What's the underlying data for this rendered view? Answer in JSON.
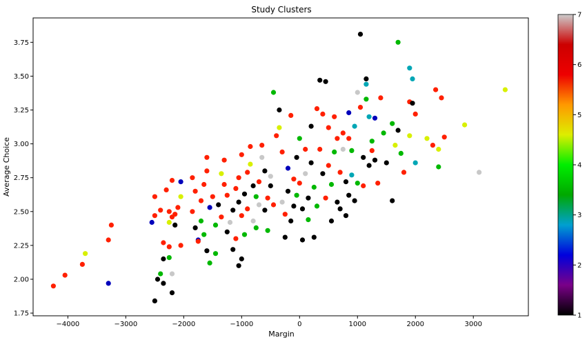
{
  "chart_data": {
    "type": "scatter",
    "title": "Study Clusters",
    "xlabel": "Margin",
    "ylabel": "Average Choice",
    "xlim": [
      -4600,
      3950
    ],
    "ylim": [
      1.73,
      3.93
    ],
    "xticks": [
      -4000,
      -3000,
      -2000,
      -1000,
      0,
      1000,
      2000,
      3000
    ],
    "yticks": [
      1.75,
      2.0,
      2.25,
      2.5,
      2.75,
      3.0,
      3.25,
      3.5,
      3.75
    ],
    "xtick_labels": [
      "−4000",
      "−3000",
      "−2000",
      "−1000",
      "0",
      "1000",
      "2000",
      "3000"
    ],
    "ytick_labels": [
      "1.75",
      "2.00",
      "2.25",
      "2.50",
      "2.75",
      "3.00",
      "3.25",
      "3.50",
      "3.75"
    ],
    "grid": false,
    "colormap": "nipy_spectral",
    "colorbar": {
      "min": 1,
      "max": 7,
      "ticks": [
        1,
        2,
        3,
        4,
        5,
        6,
        7
      ],
      "tick_labels": [
        "1",
        "2",
        "3",
        "4",
        "5",
        "6",
        "7"
      ],
      "stops": [
        "#000000",
        "#7a0088",
        "#0000dd",
        "#00a0d0",
        "#00a800",
        "#00ee00",
        "#ddee00",
        "#ff9900",
        "#ee0000",
        "#cc0000",
        "#cccccc"
      ]
    },
    "category_colors": {
      "1": "#000000",
      "2": "#0000bb",
      "3": "#00a6b5",
      "4": "#00b800",
      "5": "#d8f000",
      "6": "#ff2000",
      "7": "#c8c8c8"
    },
    "points": [
      [
        -4250,
        1.95,
        6
      ],
      [
        -4050,
        2.03,
        6
      ],
      [
        -3750,
        2.11,
        6
      ],
      [
        -3700,
        2.19,
        5
      ],
      [
        -3300,
        2.29,
        6
      ],
      [
        -3250,
        2.4,
        6
      ],
      [
        -3300,
        1.97,
        2
      ],
      [
        -2550,
        2.42,
        2
      ],
      [
        -2500,
        2.47,
        6
      ],
      [
        -2500,
        2.61,
        6
      ],
      [
        -2400,
        2.51,
        6
      ],
      [
        -2350,
        2.27,
        6
      ],
      [
        -2350,
        2.15,
        1
      ],
      [
        -2400,
        2.04,
        4
      ],
      [
        -2500,
        1.84,
        1
      ],
      [
        -2450,
        2.0,
        1
      ],
      [
        -2350,
        1.97,
        1
      ],
      [
        -2200,
        1.9,
        1
      ],
      [
        -2200,
        2.04,
        7
      ],
      [
        -2250,
        2.16,
        4
      ],
      [
        -2250,
        2.24,
        6
      ],
      [
        -2300,
        2.66,
        6
      ],
      [
        -2200,
        2.73,
        6
      ],
      [
        -2050,
        2.72,
        2
      ],
      [
        -2100,
        2.53,
        6
      ],
      [
        -2150,
        2.48,
        6
      ],
      [
        -2200,
        2.46,
        6
      ],
      [
        -2250,
        2.5,
        6
      ],
      [
        -2150,
        2.4,
        1
      ],
      [
        -2050,
        2.61,
        5
      ],
      [
        -2250,
        2.42,
        5
      ],
      [
        -2050,
        2.25,
        6
      ],
      [
        -1850,
        2.5,
        6
      ],
      [
        -1800,
        2.65,
        6
      ],
      [
        -1800,
        2.38,
        1
      ],
      [
        -1750,
        2.29,
        2
      ],
      [
        -1750,
        2.28,
        6
      ],
      [
        -1700,
        2.43,
        4
      ],
      [
        -1650,
        2.33,
        4
      ],
      [
        -1700,
        2.58,
        6
      ],
      [
        -1650,
        2.7,
        6
      ],
      [
        -1600,
        2.8,
        6
      ],
      [
        -1600,
        2.9,
        6
      ],
      [
        -1500,
        2.61,
        6
      ],
      [
        -1550,
        2.53,
        2
      ],
      [
        -1600,
        2.21,
        1
      ],
      [
        -1550,
        2.12,
        4
      ],
      [
        -1450,
        2.19,
        4
      ],
      [
        -1450,
        2.4,
        4
      ],
      [
        -1400,
        2.55,
        1
      ],
      [
        -1350,
        2.46,
        6
      ],
      [
        -1300,
        2.7,
        6
      ],
      [
        -1350,
        2.78,
        5
      ],
      [
        -1300,
        2.88,
        6
      ],
      [
        -1250,
        2.62,
        6
      ],
      [
        -1200,
        2.42,
        7
      ],
      [
        -1150,
        2.51,
        1
      ],
      [
        -1150,
        2.22,
        1
      ],
      [
        -1100,
        2.3,
        6
      ],
      [
        -1100,
        2.67,
        6
      ],
      [
        -1050,
        2.57,
        1
      ],
      [
        -1050,
        2.75,
        6
      ],
      [
        -1000,
        2.92,
        6
      ],
      [
        -1000,
        2.47,
        6
      ],
      [
        -950,
        2.63,
        1
      ],
      [
        -950,
        2.33,
        4
      ],
      [
        -1000,
        2.15,
        1
      ],
      [
        -1050,
        2.1,
        1
      ],
      [
        -900,
        2.52,
        6
      ],
      [
        -900,
        2.79,
        6
      ],
      [
        -850,
        2.85,
        5
      ],
      [
        -850,
        2.98,
        6
      ],
      [
        -800,
        2.69,
        1
      ],
      [
        -800,
        2.43,
        7
      ],
      [
        -750,
        2.61,
        4
      ],
      [
        -750,
        2.38,
        4
      ],
      [
        -700,
        2.55,
        7
      ],
      [
        -700,
        2.72,
        6
      ],
      [
        -650,
        2.9,
        7
      ],
      [
        -650,
        2.99,
        6
      ],
      [
        -600,
        2.8,
        1
      ],
      [
        -600,
        2.51,
        1
      ],
      [
        -550,
        2.6,
        6
      ],
      [
        -550,
        2.36,
        4
      ],
      [
        -500,
        2.76,
        7
      ],
      [
        -500,
        2.69,
        1
      ],
      [
        -450,
        3.38,
        4
      ],
      [
        -400,
        3.06,
        6
      ],
      [
        -350,
        3.25,
        1
      ],
      [
        -350,
        3.12,
        5
      ],
      [
        -300,
        2.94,
        6
      ],
      [
        -300,
        2.57,
        7
      ],
      [
        -250,
        2.48,
        6
      ],
      [
        -250,
        2.31,
        1
      ],
      [
        -200,
        2.82,
        2
      ],
      [
        -200,
        2.65,
        1
      ],
      [
        -150,
        3.21,
        6
      ],
      [
        -150,
        2.43,
        1
      ],
      [
        -100,
        2.74,
        6
      ],
      [
        -100,
        2.54,
        1
      ],
      [
        -50,
        2.9,
        1
      ],
      [
        -50,
        2.62,
        4
      ],
      [
        0,
        3.04,
        4
      ],
      [
        0,
        2.71,
        6
      ],
      [
        50,
        2.52,
        1
      ],
      [
        50,
        2.29,
        1
      ],
      [
        100,
        2.96,
        6
      ],
      [
        100,
        2.78,
        7
      ],
      [
        150,
        2.6,
        1
      ],
      [
        150,
        2.44,
        4
      ],
      [
        200,
        3.13,
        1
      ],
      [
        200,
        2.86,
        1
      ],
      [
        250,
        2.31,
        1
      ],
      [
        250,
        2.68,
        4
      ],
      [
        300,
        3.26,
        6
      ],
      [
        300,
        2.54,
        4
      ],
      [
        350,
        3.47,
        1
      ],
      [
        350,
        2.96,
        6
      ],
      [
        400,
        3.22,
        6
      ],
      [
        400,
        2.78,
        1
      ],
      [
        450,
        3.46,
        1
      ],
      [
        450,
        2.6,
        6
      ],
      [
        500,
        3.12,
        6
      ],
      [
        500,
        2.84,
        6
      ],
      [
        550,
        2.43,
        1
      ],
      [
        550,
        2.7,
        4
      ],
      [
        600,
        3.2,
        6
      ],
      [
        600,
        2.94,
        4
      ],
      [
        650,
        2.57,
        1
      ],
      [
        650,
        3.04,
        6
      ],
      [
        700,
        2.79,
        6
      ],
      [
        700,
        2.52,
        1
      ],
      [
        750,
        3.08,
        6
      ],
      [
        750,
        2.96,
        7
      ],
      [
        800,
        2.72,
        1
      ],
      [
        800,
        2.47,
        1
      ],
      [
        850,
        3.04,
        6
      ],
      [
        850,
        3.23,
        2
      ],
      [
        900,
        2.95,
        4
      ],
      [
        900,
        2.77,
        3
      ],
      [
        950,
        3.13,
        3
      ],
      [
        950,
        2.58,
        1
      ],
      [
        1000,
        3.38,
        7
      ],
      [
        1000,
        2.71,
        4
      ],
      [
        1050,
        3.81,
        1
      ],
      [
        1050,
        3.27,
        6
      ],
      [
        1100,
        2.9,
        1
      ],
      [
        1100,
        2.69,
        6
      ],
      [
        1150,
        3.44,
        3
      ],
      [
        1150,
        3.48,
        1
      ],
      [
        1150,
        3.33,
        4
      ],
      [
        1200,
        3.2,
        3
      ],
      [
        1200,
        2.84,
        1
      ],
      [
        1250,
        3.02,
        4
      ],
      [
        1300,
        2.88,
        1
      ],
      [
        1300,
        3.19,
        2
      ],
      [
        1350,
        2.71,
        6
      ],
      [
        1400,
        3.34,
        6
      ],
      [
        1450,
        3.08,
        4
      ],
      [
        1500,
        2.86,
        1
      ],
      [
        1600,
        3.15,
        4
      ],
      [
        1650,
        2.99,
        5
      ],
      [
        1700,
        3.75,
        4
      ],
      [
        1700,
        3.1,
        1
      ],
      [
        1750,
        2.93,
        4
      ],
      [
        1800,
        2.79,
        6
      ],
      [
        1900,
        3.56,
        3
      ],
      [
        1900,
        3.31,
        6
      ],
      [
        1900,
        3.06,
        5
      ],
      [
        1950,
        3.48,
        3
      ],
      [
        1950,
        3.3,
        1
      ],
      [
        2000,
        3.22,
        6
      ],
      [
        2000,
        2.86,
        3
      ],
      [
        2200,
        3.04,
        5
      ],
      [
        2300,
        2.99,
        6
      ],
      [
        2350,
        3.4,
        6
      ],
      [
        2400,
        2.96,
        5
      ],
      [
        2400,
        2.83,
        4
      ],
      [
        2450,
        3.34,
        6
      ],
      [
        2500,
        3.05,
        6
      ],
      [
        2850,
        3.14,
        5
      ],
      [
        3100,
        2.79,
        7
      ],
      [
        3550,
        3.4,
        5
      ],
      [
        1600,
        2.58,
        1
      ],
      [
        1250,
        2.95,
        6
      ],
      [
        850,
        2.62,
        1
      ],
      [
        -450,
        2.55,
        6
      ],
      [
        -1250,
        2.35,
        1
      ],
      [
        -1850,
        2.75,
        6
      ]
    ]
  }
}
